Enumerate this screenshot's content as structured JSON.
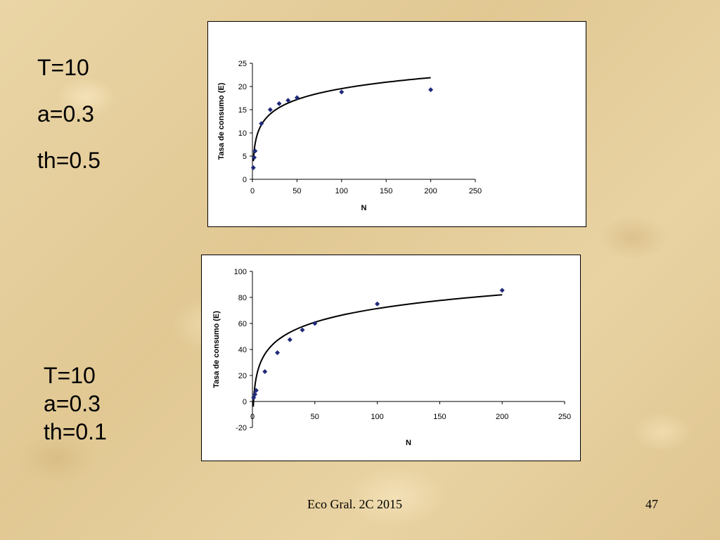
{
  "params_top": {
    "lines": [
      "T=10",
      "a=0.3",
      "th=0.5"
    ]
  },
  "params_bottom": {
    "lines": [
      "T=10",
      "a=0.3",
      "th=0.1"
    ]
  },
  "footer": {
    "left": "Eco Gral. 2C 2015",
    "page": "47"
  },
  "colors": {
    "points": "#1f2a7a",
    "curve": "#000000",
    "axis": "#000000"
  },
  "chart_data": [
    {
      "type": "scatter",
      "title": "",
      "xlabel": "N",
      "ylabel": "Tasa de consumo (E)",
      "xlim": [
        0,
        250
      ],
      "ylim": [
        0,
        25
      ],
      "xticks": [
        0,
        50,
        100,
        150,
        200,
        250
      ],
      "yticks": [
        0,
        5,
        10,
        15,
        20,
        25
      ],
      "grid": false,
      "legend": "none",
      "series": [
        {
          "x": [
            1,
            2,
            3,
            10,
            20,
            30,
            40,
            50,
            100,
            200
          ],
          "y": [
            2.5,
            4.7,
            6.1,
            12.0,
            15.0,
            16.3,
            17.0,
            17.6,
            18.8,
            19.3
          ]
        }
      ],
      "trendline": {
        "type": "logarithmic",
        "x_range": [
          1,
          200
        ],
        "y_at_x_min": 3.9,
        "y_at_x_max": 21.9
      }
    },
    {
      "type": "scatter",
      "title": "",
      "xlabel": "N",
      "ylabel": "Tasa de consumo (E)",
      "xlim": [
        0,
        250
      ],
      "ylim": [
        -20,
        100
      ],
      "xticks": [
        0,
        50,
        100,
        150,
        200,
        250
      ],
      "yticks": [
        -20,
        0,
        20,
        40,
        60,
        80,
        100
      ],
      "grid": false,
      "legend": "none",
      "series": [
        {
          "x": [
            1,
            2,
            3,
            10,
            20,
            30,
            40,
            50,
            100,
            200
          ],
          "y": [
            3,
            5.5,
            8.5,
            23,
            37.5,
            47.5,
            55,
            60,
            75,
            85.5
          ]
        }
      ],
      "trendline": {
        "type": "logarithmic",
        "x_range": [
          0.7,
          200
        ],
        "y_at_x_min": -4,
        "y_at_x_max": 82
      }
    }
  ]
}
